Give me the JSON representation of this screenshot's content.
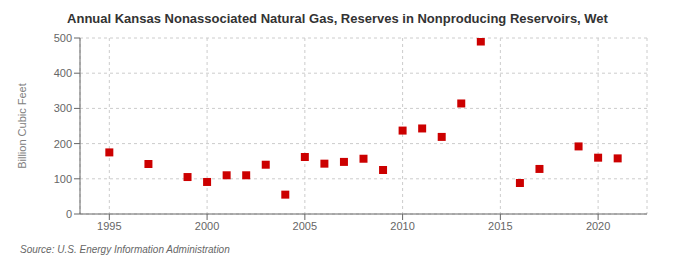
{
  "chart_data": {
    "type": "scatter",
    "title": "Annual Kansas Nonassociated Natural Gas, Reserves in Nonproducing Reservoirs, Wet",
    "ylabel": "Billion Cubic Feet",
    "annotations": [
      "Source: U.S. Energy Information Administration"
    ],
    "x": [
      1995,
      1997,
      1999,
      2000,
      2001,
      2002,
      2003,
      2004,
      2005,
      2006,
      2007,
      2008,
      2009,
      2010,
      2011,
      2012,
      2013,
      2014,
      2016,
      2017,
      2019,
      2020,
      2021
    ],
    "values": [
      175,
      142,
      105,
      91,
      110,
      110,
      140,
      55,
      162,
      143,
      148,
      157,
      125,
      237,
      243,
      219,
      314,
      490,
      88,
      128,
      192,
      160,
      158
    ],
    "color": "#cc0000",
    "marker": "square",
    "xlim": [
      1993.5,
      2022.5
    ],
    "xticks": [
      1995,
      2000,
      2005,
      2010,
      2015,
      2020
    ],
    "ylim": [
      0,
      500
    ],
    "yticks": [
      0,
      100,
      200,
      300,
      400,
      500
    ],
    "grid": true
  }
}
